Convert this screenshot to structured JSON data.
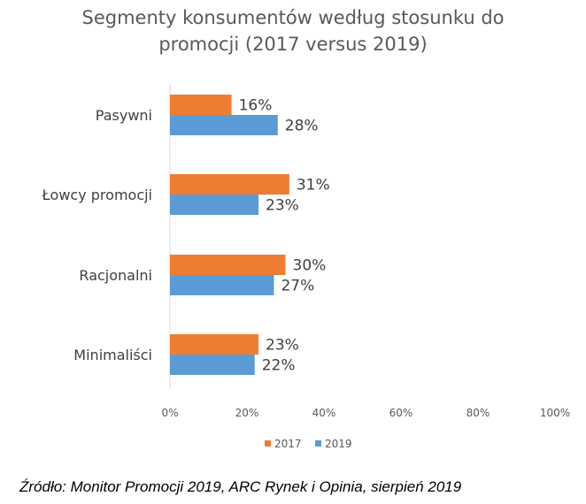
{
  "chart_data": {
    "type": "bar",
    "orientation": "horizontal",
    "title_lines": [
      "Segmenty konsumentów według stosunku do",
      "promocji (2017 versus 2019)"
    ],
    "categories": [
      "Pasywni",
      "Łowcy promocji",
      "Racjonalni",
      "Minimaliści"
    ],
    "series": [
      {
        "name": "2017",
        "color": "#ED7D31",
        "values": [
          16,
          31,
          30,
          23
        ]
      },
      {
        "name": "2019",
        "color": "#5B9BD5",
        "values": [
          28,
          23,
          27,
          22
        ]
      }
    ],
    "xlim": [
      0,
      100
    ],
    "xticks": [
      0,
      20,
      40,
      60,
      80,
      100
    ],
    "tick_suffix": "%",
    "value_suffix": "%",
    "legend_position": "bottom",
    "grid": false
  },
  "source_text": "Źródło: Monitor Promocji 2019, ARC Rynek i Opinia, sierpień 2019"
}
